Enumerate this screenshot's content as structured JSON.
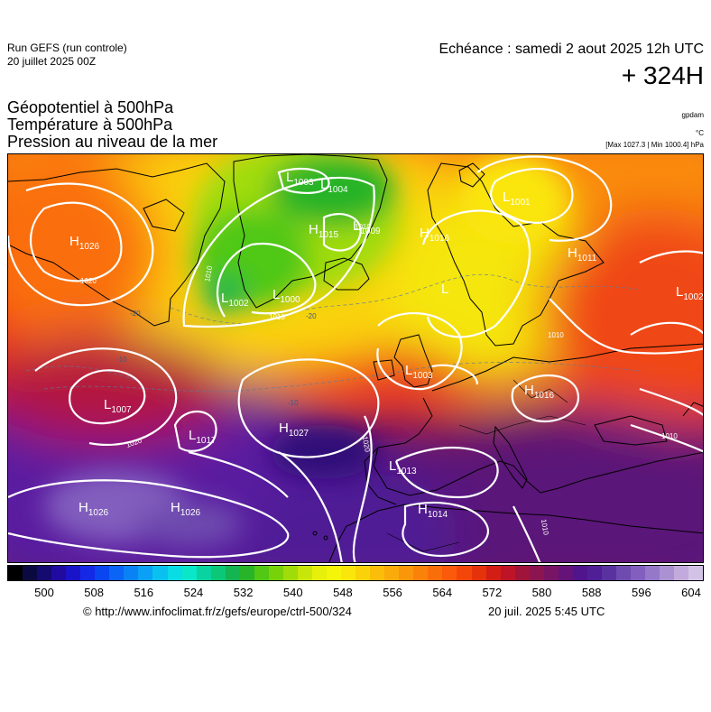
{
  "header": {
    "run_title": "Run GEFS (run controle)",
    "run_date": "20 juillet 2025 00Z",
    "valid_time": "Echéance : samedi 2 aout 2025 12h UTC",
    "lead_time": "+ 324H"
  },
  "parameters": [
    "Géopotentiel à 500hPa",
    "Température à 500hPa",
    "Pression au niveau de la mer"
  ],
  "units": {
    "geopotential": "gpdam",
    "temperature": "°C",
    "pressure": "[Max 1027.3 | Min 1000.4] hPa"
  },
  "colorbar": {
    "ticks": [
      "500",
      "508",
      "516",
      "524",
      "532",
      "540",
      "548",
      "556",
      "564",
      "572",
      "580",
      "588",
      "596",
      "604"
    ],
    "colors": [
      "#000000",
      "#0a0a40",
      "#150a70",
      "#200aa0",
      "#1a14c8",
      "#1428e6",
      "#0a46f0",
      "#0a64f5",
      "#0a82f5",
      "#0aa0f5",
      "#0ac0f0",
      "#0adce6",
      "#0ae6c8",
      "#0ad2a0",
      "#0ac878",
      "#14b450",
      "#28b428",
      "#50c814",
      "#78d20a",
      "#a0dc0a",
      "#c8e60a",
      "#e6f00a",
      "#f5f50a",
      "#fae60a",
      "#fad20a",
      "#fabe0a",
      "#faaa0a",
      "#fa960a",
      "#fa820a",
      "#fa6e0a",
      "#fa5a0a",
      "#f5460a",
      "#e6320a",
      "#d21e14",
      "#be1428",
      "#a0143c",
      "#8c1450",
      "#781464",
      "#641478",
      "#50148c",
      "#501e96",
      "#5a32a0",
      "#6e4baf",
      "#825fbe",
      "#9678c8",
      "#aa91d2",
      "#c3aadc",
      "#d2c3e6"
    ]
  },
  "map_labels": {
    "pressure_centers": [
      {
        "type": "H",
        "value": "1026"
      },
      {
        "type": "L",
        "value": "1003"
      },
      {
        "type": "L",
        "value": "1004"
      },
      {
        "type": "H",
        "value": "1015"
      },
      {
        "type": "L",
        "value": "1009"
      },
      {
        "type": "H",
        "value": "1016"
      },
      {
        "type": "L",
        "value": "1001"
      },
      {
        "type": "H",
        "value": "1011"
      },
      {
        "type": "L",
        "value": "1002"
      },
      {
        "type": "L",
        "value": "1000"
      },
      {
        "type": "L",
        "value": "1002"
      },
      {
        "type": "L",
        "value": "1007"
      },
      {
        "type": "L",
        "value": "1017"
      },
      {
        "type": "H",
        "value": "1027"
      },
      {
        "type": "L",
        "value": "1003"
      },
      {
        "type": "H",
        "value": "1016"
      },
      {
        "type": "L",
        "value": "1013"
      },
      {
        "type": "H",
        "value": "1026"
      },
      {
        "type": "H",
        "value": "1026"
      },
      {
        "type": "H",
        "value": "1014"
      },
      {
        "type": "L",
        "value": ""
      }
    ],
    "isobar_labels": [
      "1020",
      "1010",
      "1010",
      "1010",
      "1010",
      "1020",
      "1020",
      "1010",
      "1010"
    ],
    "temperature_labels": [
      "-20",
      "-20",
      "-10",
      "-10"
    ]
  },
  "footer": {
    "url": "© http://www.infoclimat.fr/z/gefs/europe/ctrl-500/324",
    "run_time": "20 juil. 2025  5:45 UTC"
  }
}
